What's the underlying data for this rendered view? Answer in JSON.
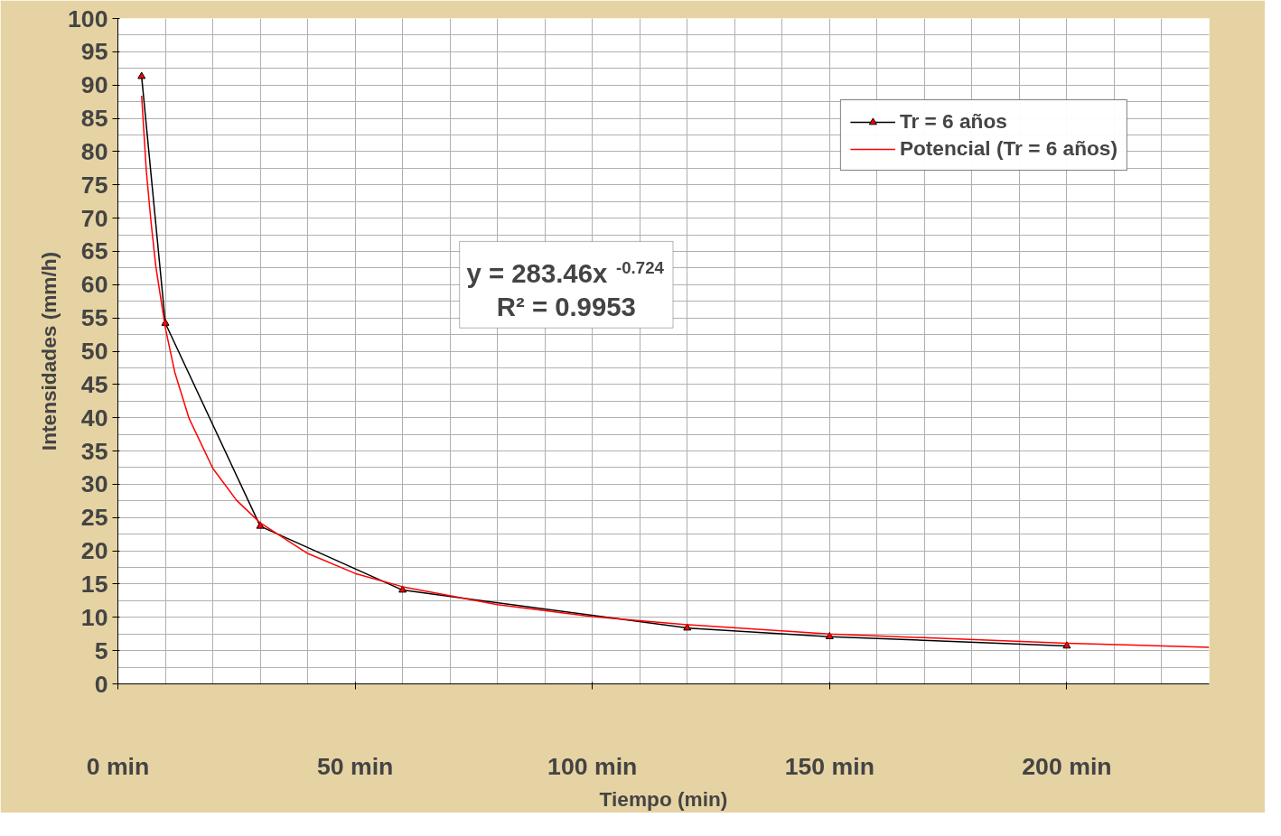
{
  "chart_data": {
    "type": "line",
    "xlabel": "Tiempo (min)",
    "ylabel": "Intensidades (mm/h)",
    "xlim": [
      0,
      230
    ],
    "ylim": [
      0,
      100
    ],
    "xticks": [
      {
        "value": 0,
        "label": "0 min"
      },
      {
        "value": 50,
        "label": "50 min"
      },
      {
        "value": 100,
        "label": "100 min"
      },
      {
        "value": 150,
        "label": "150 min"
      },
      {
        "value": 200,
        "label": "200 min"
      }
    ],
    "yticks": [
      0,
      5,
      10,
      15,
      20,
      25,
      30,
      35,
      40,
      45,
      50,
      55,
      60,
      65,
      70,
      75,
      80,
      85,
      90,
      95,
      100
    ],
    "grid": true,
    "legend": "top right",
    "series": [
      {
        "name": "Tr = 6 años",
        "color": "#000000",
        "marker": "triangle",
        "x": [
          5,
          10,
          30,
          60,
          120,
          150,
          200
        ],
        "values": [
          91.3,
          54.2,
          23.7,
          14.1,
          8.4,
          7.1,
          5.7
        ]
      },
      {
        "name": "Potencial (Tr = 6 años)",
        "color": "#ff0000",
        "marker": "none",
        "x": [
          5,
          6,
          7,
          8,
          10,
          12,
          15,
          20,
          25,
          30,
          40,
          50,
          60,
          80,
          100,
          120,
          150,
          200,
          230
        ],
        "values": [
          88.4,
          77.0,
          69.3,
          62.7,
          53.5,
          46.8,
          39.9,
          32.4,
          27.6,
          24.2,
          19.6,
          16.6,
          14.6,
          11.9,
          10.1,
          8.9,
          7.5,
          6.1,
          5.5
        ]
      }
    ],
    "annotations": [
      "y = 283.46x$^{-0.724}$",
      "R² = 0.9953"
    ]
  }
}
